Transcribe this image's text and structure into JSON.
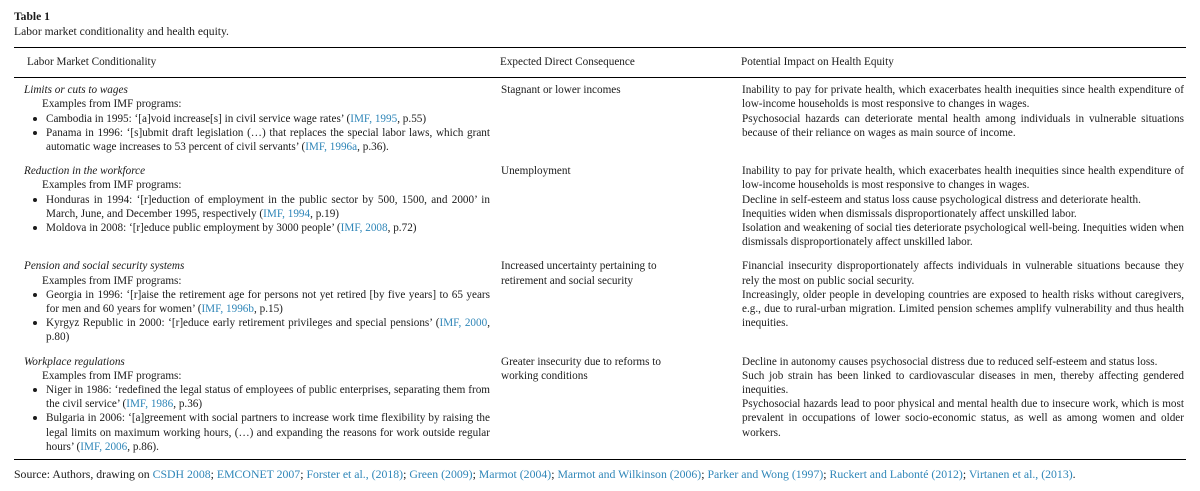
{
  "page": {
    "label": "Table 1",
    "caption": "Labor market conditionality and health equity."
  },
  "colors": {
    "link": "#2f86b8",
    "text": "#1b1b1b",
    "rule": "#000000",
    "background": "#ffffff"
  },
  "table": {
    "columns": [
      "Labor Market Conditionality",
      "Expected Direct Consequence",
      "Potential Impact on Health Equity"
    ],
    "rows": [
      {
        "category": "Limits or cuts to wages",
        "examples_label": "Examples from IMF programs:",
        "examples": [
          {
            "segments": [
              {
                "t": "Cambodia in 1995: ‘[a]void increase[s] in civil service wage rates’ ("
              },
              {
                "t": "IMF, 1995",
                "link": true
              },
              {
                "t": ", p.55)"
              }
            ]
          },
          {
            "segments": [
              {
                "t": "Panama in 1996: ‘[s]ubmit draft legislation (…) that replaces the special labor laws, which grant automatic wage increases to 53 percent of civil servants’ ("
              },
              {
                "t": "IMF, 1996a",
                "link": true
              },
              {
                "t": ", p.36)."
              }
            ]
          }
        ],
        "consequence": "Stagnant or lower incomes",
        "impacts": [
          "Inability to pay for private health, which exacerbates health inequities since health expenditure of low-income households is most responsive to changes in wages.",
          "Psychosocial hazards can deteriorate mental health among individuals in vulnerable situations because of their reliance on wages as main source of income."
        ]
      },
      {
        "category": "Reduction in the workforce",
        "examples_label": "Examples from IMF programs:",
        "examples": [
          {
            "segments": [
              {
                "t": "Honduras in 1994: ‘[r]eduction of employment in the public sector by 500, 1500, and 2000’ in March, June, and December 1995, respectively ("
              },
              {
                "t": "IMF, 1994",
                "link": true
              },
              {
                "t": ", p.19)"
              }
            ]
          },
          {
            "segments": [
              {
                "t": "Moldova in 2008: ‘[r]educe public employment by 3000 people’ ("
              },
              {
                "t": "IMF, 2008",
                "link": true
              },
              {
                "t": ", p.72)"
              }
            ]
          }
        ],
        "consequence": "Unemployment",
        "impacts": [
          "Inability to pay for private health, which exacerbates health inequities since health expenditure of low-income households is most responsive to changes in wages.",
          "Decline in self-esteem and status loss cause psychological distress and deteriorate health.",
          "Inequities widen when dismissals disproportionately affect unskilled labor.",
          "Isolation and weakening of social ties deteriorate psychological well-being. Inequities widen when dismissals disproportionately affect unskilled labor."
        ]
      },
      {
        "category": "Pension and social security systems",
        "examples_label": "Examples from IMF programs:",
        "examples": [
          {
            "segments": [
              {
                "t": "Georgia in 1996: ‘[r]aise the retirement age for persons not yet retired [by five years] to 65 years for men and 60 years for women’ ("
              },
              {
                "t": "IMF, 1996b",
                "link": true
              },
              {
                "t": ", p.15)"
              }
            ]
          },
          {
            "segments": [
              {
                "t": "Kyrgyz Republic in 2000: ‘[r]educe early retirement privileges and special pensions’ ("
              },
              {
                "t": "IMF, 2000",
                "link": true
              },
              {
                "t": ", p.80)"
              }
            ]
          }
        ],
        "consequence": "Increased uncertainty pertaining to retirement and social security",
        "impacts": [
          "Financial insecurity disproportionately affects individuals in vulnerable situations because they rely the most on public social security.",
          "Increasingly, older people in developing countries are exposed to health risks without caregivers, e.g., due to rural-urban migration. Limited pension schemes amplify vulnerability and thus health inequities."
        ]
      },
      {
        "category": "Workplace regulations",
        "examples_label": "Examples from IMF programs:",
        "examples": [
          {
            "segments": [
              {
                "t": "Niger in 1986: ‘redefined the legal status of employees of public enterprises, separating them from the civil service’ ("
              },
              {
                "t": "IMF, 1986",
                "link": true
              },
              {
                "t": ", p.36)"
              }
            ]
          },
          {
            "segments": [
              {
                "t": "Bulgaria in 2006: ‘[a]greement with social partners to increase work time flexibility by raising the legal limits on maximum working hours, (…) and expanding the reasons for work outside regular hours’ ("
              },
              {
                "t": "IMF, 2006",
                "link": true
              },
              {
                "t": ", p.86)."
              }
            ]
          }
        ],
        "consequence": "Greater insecurity due to reforms to working conditions",
        "impacts": [
          "Decline in autonomy causes psychosocial distress due to reduced self-esteem and status loss.",
          "Such job strain has been linked to cardiovascular diseases in men, thereby affecting gendered inequities.",
          "Psychosocial hazards lead to poor physical and mental health due to insecure work, which is most prevalent in occupations of lower socio-economic status, as well as among women and older workers."
        ]
      }
    ]
  },
  "footer": {
    "segments": [
      {
        "t": "Source: Authors, drawing on "
      },
      {
        "t": "CSDH 2008",
        "link": true
      },
      {
        "t": "; "
      },
      {
        "t": "EMCONET 2007",
        "link": true
      },
      {
        "t": "; "
      },
      {
        "t": "Forster et al., (2018)",
        "link": true
      },
      {
        "t": "; "
      },
      {
        "t": "Green (2009)",
        "link": true
      },
      {
        "t": "; "
      },
      {
        "t": "Marmot (2004)",
        "link": true
      },
      {
        "t": "; "
      },
      {
        "t": "Marmot and Wilkinson (2006)",
        "link": true
      },
      {
        "t": "; "
      },
      {
        "t": "Parker and Wong (1997)",
        "link": true
      },
      {
        "t": "; "
      },
      {
        "t": "Ruckert and Labonté (2012)",
        "link": true
      },
      {
        "t": "; "
      },
      {
        "t": "Virtanen et al., (2013)",
        "link": true
      },
      {
        "t": "."
      }
    ]
  }
}
